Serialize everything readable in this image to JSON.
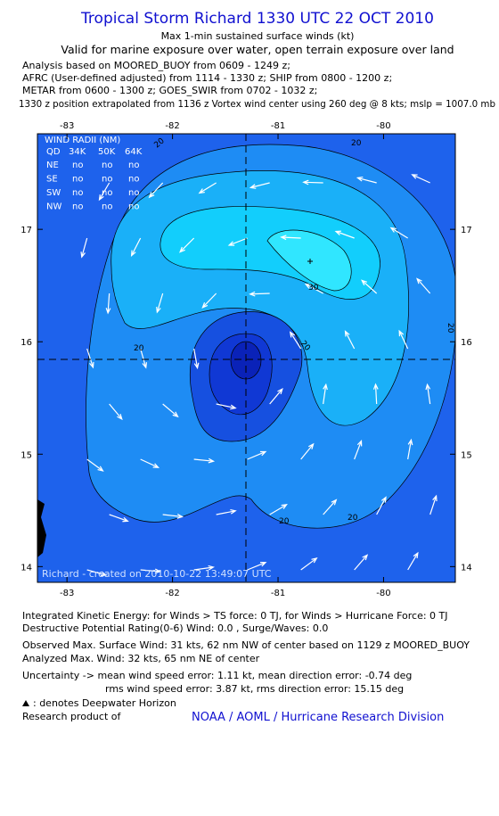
{
  "header": {
    "title": "Tropical Storm Richard 1330 UTC 22 OCT 2010",
    "subtitle": "Max 1-min sustained surface winds (kt)",
    "validity": "Valid for marine exposure over water, open terrain exposure over land",
    "notes": [
      "Analysis based on MOORED_BUOY from 0609 - 1249 z;",
      "AFRC (User-defined adjusted) from 1114 - 1330 z; SHIP from 0800 - 1200 z;",
      "METAR from 0600 - 1300 z; GOES_SWIR from 0702 - 1032 z;",
      "1330 z position extrapolated from 1136 z Vortex wind center using 260 deg @ 8 kts; mslp = 1007.0 mb"
    ]
  },
  "map": {
    "xlim": [
      -83.28,
      -79.32
    ],
    "ylim": [
      13.86,
      17.85
    ],
    "xticks": [
      -83,
      -82,
      -81,
      -80
    ],
    "yticks": [
      14,
      15,
      16,
      17
    ],
    "contour_labels": [
      20,
      20,
      20,
      30,
      20,
      20,
      20,
      20
    ],
    "credit": "Richard - created on 2010-10-22 13:49:07 UTC"
  },
  "wind_radii": {
    "title": "WIND RADII (NM)",
    "columns": [
      "QD",
      "34K",
      "50K",
      "64K"
    ],
    "rows": [
      [
        "NE",
        "no",
        "no",
        "no"
      ],
      [
        "SE",
        "no",
        "no",
        "no"
      ],
      [
        "SW",
        "no",
        "no",
        "no"
      ],
      [
        "NW",
        "no",
        "no",
        "no"
      ]
    ]
  },
  "footer": {
    "lines": [
      "Integrated Kinetic Energy:  for Winds > TS force: 0 TJ,  for Winds > Hurricane Force: 0 TJ",
      "Destructive Potential Rating(0-6)   Wind: 0.0 , Surge/Waves: 0.0",
      "Observed Max. Surface Wind: 31 kts, 62 nm NW of center based on 1129 z MOORED_BUOY",
      "Analyzed Max. Wind: 32 kts, 65 nm NE of center",
      "Uncertainty -> mean wind speed error: 1.11 kt,   mean direction error:  -0.74 deg",
      "rms wind speed error: 3.87 kt,   rms direction error: 15.15 deg"
    ],
    "legend": ": denotes Deepwater Horizon",
    "research": "Research product of",
    "org": "NOAA / AOML / Hurricane Research Division"
  }
}
